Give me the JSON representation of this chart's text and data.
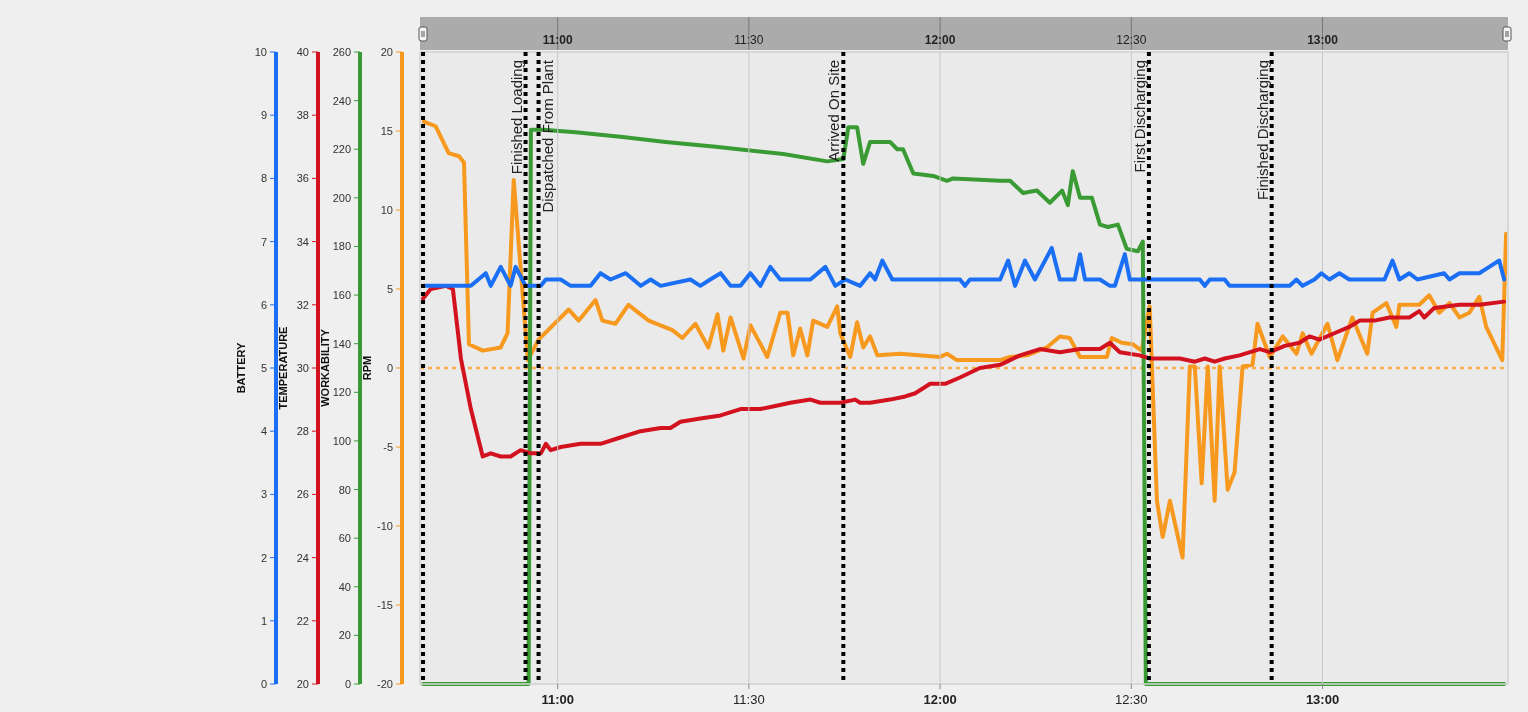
{
  "chart_data": [
    {
      "type": "line",
      "ylabel": "BATTERY",
      "xlim": [
        10.64,
        13.485
      ],
      "xticks": [
        {
          "value": 11,
          "label": "11:00"
        },
        {
          "value": 11.5,
          "label": "11:30"
        },
        {
          "value": 12,
          "label": "12:00"
        },
        {
          "value": 12.5,
          "label": "12:30"
        },
        {
          "value": 13,
          "label": "13:00"
        }
      ],
      "x2lim": [
        10.64,
        13.485
      ],
      "x2ticks": [
        {
          "value": 11,
          "label": "11:00"
        },
        {
          "value": 11.5,
          "label": "11:30"
        },
        {
          "value": 12,
          "label": "12:00"
        },
        {
          "value": 12.5,
          "label": "12:30"
        },
        {
          "value": 13,
          "label": "13:00"
        }
      ],
      "ylim": [
        0,
        10
      ],
      "yticks": [
        0,
        1,
        2,
        3,
        4,
        5,
        6,
        7,
        8,
        9,
        10
      ],
      "grid": "x",
      "series": [
        {
          "color": "#1a6ff5",
          "x": [
            10.648,
            10.773,
            10.812,
            10.825,
            10.851,
            10.877,
            10.89,
            10.916,
            10.956,
            10.969,
            11.008,
            11.034,
            11.086,
            11.112,
            11.138,
            11.178,
            11.217,
            11.243,
            11.269,
            11.347,
            11.373,
            11.399,
            11.426,
            11.452,
            11.478,
            11.504,
            11.53,
            11.556,
            11.582,
            11.661,
            11.7,
            11.726,
            11.752,
            11.791,
            11.817,
            11.83,
            11.849,
            11.875,
            12.052,
            12.065,
            12.078,
            12.157,
            12.178,
            12.196,
            12.222,
            12.248,
            12.292,
            12.313,
            12.352,
            12.366,
            12.379,
            12.418,
            12.444,
            12.457,
            12.483,
            12.496,
            12.679,
            12.692,
            12.705,
            12.744,
            12.757,
            12.914,
            12.932,
            12.948,
            12.979,
            12.997,
            13.018,
            13.044,
            13.07,
            13.162,
            13.183,
            13.201,
            13.227,
            13.248,
            13.318,
            13.332,
            13.358,
            13.41,
            13.436,
            13.462,
            13.475
          ],
          "values": [
            6.3,
            6.3,
            6.5,
            6.3,
            6.6,
            6.3,
            6.6,
            6.3,
            6.3,
            6.4,
            6.4,
            6.3,
            6.3,
            6.5,
            6.4,
            6.5,
            6.3,
            6.4,
            6.3,
            6.4,
            6.3,
            6.4,
            6.5,
            6.3,
            6.3,
            6.5,
            6.3,
            6.6,
            6.4,
            6.4,
            6.6,
            6.3,
            6.4,
            6.3,
            6.5,
            6.4,
            6.7,
            6.4,
            6.4,
            6.3,
            6.4,
            6.4,
            6.7,
            6.3,
            6.7,
            6.4,
            6.9,
            6.4,
            6.4,
            6.8,
            6.4,
            6.4,
            6.3,
            6.3,
            6.8,
            6.4,
            6.4,
            6.3,
            6.4,
            6.4,
            6.3,
            6.3,
            6.4,
            6.3,
            6.4,
            6.5,
            6.4,
            6.5,
            6.4,
            6.4,
            6.7,
            6.4,
            6.5,
            6.4,
            6.5,
            6.4,
            6.5,
            6.5,
            6.6,
            6.7,
            6.4
          ]
        }
      ],
      "ref_lines": [
        {
          "axis": "x",
          "value": 10.648,
          "label": null,
          "color": "#000000",
          "line_style": "dotted"
        },
        {
          "axis": "x",
          "value": 10.916,
          "label": "Finished Loading",
          "color": "#000000",
          "line_style": "dotted"
        },
        {
          "axis": "x",
          "value": 10.95,
          "label": "Dispatched From Plant",
          "color": "#000000",
          "line_style": "dotted"
        },
        {
          "axis": "x",
          "value": 11.747,
          "label": "Arrived On Site",
          "color": "#000000",
          "line_style": "dotted"
        },
        {
          "axis": "x",
          "value": 12.546,
          "label": "First Discharging",
          "color": "#000000",
          "line_style": "dotted"
        },
        {
          "axis": "x",
          "value": 12.867,
          "label": "Finished Discharging",
          "color": "#000000",
          "line_style": "dotted"
        }
      ]
    },
    {
      "type": "line",
      "ylabel": "TEMPERATURE",
      "xlim": [
        10.64,
        13.485
      ],
      "ylim": [
        20,
        40
      ],
      "yticks": [
        20,
        22,
        24,
        26,
        28,
        30,
        32,
        34,
        36,
        38,
        40
      ],
      "tick_labels": "y",
      "series": [
        {
          "color": "#d3121f",
          "x": [
            10.648,
            10.668,
            10.708,
            10.726,
            10.747,
            10.773,
            10.804,
            10.825,
            10.851,
            10.877,
            10.903,
            10.93,
            10.956,
            10.969,
            10.982,
            11.008,
            11.06,
            11.112,
            11.164,
            11.217,
            11.269,
            11.295,
            11.321,
            11.373,
            11.426,
            11.478,
            11.53,
            11.569,
            11.608,
            11.661,
            11.687,
            11.739,
            11.778,
            11.791,
            11.817,
            11.869,
            11.909,
            11.935,
            11.974,
            12.013,
            12.052,
            12.104,
            12.157,
            12.209,
            12.261,
            12.313,
            12.366,
            12.418,
            12.444,
            12.47,
            12.522,
            12.548,
            12.627,
            12.666,
            12.692,
            12.718,
            12.744,
            12.783,
            12.836,
            12.862,
            12.901,
            12.94,
            12.966,
            12.992,
            13.031,
            13.07,
            13.097,
            13.136,
            13.175,
            13.227,
            13.253,
            13.266,
            13.292,
            13.358,
            13.41,
            13.475
          ],
          "values": [
            32.2,
            32.5,
            32.6,
            32.5,
            30.3,
            28.7,
            27.2,
            27.3,
            27.2,
            27.2,
            27.4,
            27.3,
            27.3,
            27.6,
            27.4,
            27.5,
            27.6,
            27.6,
            27.8,
            28.0,
            28.1,
            28.1,
            28.3,
            28.4,
            28.5,
            28.7,
            28.7,
            28.8,
            28.9,
            29.0,
            28.9,
            28.9,
            29.0,
            28.9,
            28.9,
            29.0,
            29.1,
            29.2,
            29.5,
            29.5,
            29.7,
            30.0,
            30.1,
            30.4,
            30.6,
            30.5,
            30.6,
            30.6,
            30.8,
            30.5,
            30.4,
            30.3,
            30.3,
            30.2,
            30.3,
            30.2,
            30.3,
            30.4,
            30.6,
            30.5,
            30.7,
            30.8,
            31.0,
            30.9,
            31.1,
            31.3,
            31.5,
            31.5,
            31.6,
            31.6,
            31.8,
            31.6,
            31.9,
            32.0,
            32.0,
            32.1
          ]
        }
      ]
    },
    {
      "type": "line",
      "ylabel": "WORKABILITY",
      "xlim": [
        10.64,
        13.485
      ],
      "ylim": [
        0,
        260
      ],
      "yticks": [
        0,
        20,
        40,
        60,
        80,
        100,
        120,
        140,
        160,
        180,
        200,
        220,
        240,
        260
      ],
      "tick_labels": "y",
      "series": [
        {
          "color": "#3a9b35",
          "x": [
            10.648,
            10.924,
            10.93,
            10.961,
            11.047,
            11.17,
            11.282,
            11.413,
            11.59,
            11.705,
            11.747,
            11.76,
            11.783,
            11.799,
            11.817,
            11.869,
            11.888,
            11.903,
            11.93,
            11.982,
            12.018,
            12.034,
            12.157,
            12.183,
            12.217,
            12.253,
            12.287,
            12.319,
            12.334,
            12.347,
            12.366,
            12.397,
            12.418,
            12.439,
            12.465,
            12.488,
            12.517,
            12.53,
            12.538,
            13.475
          ],
          "values": [
            0,
            0,
            228,
            228,
            227,
            225,
            223,
            221,
            218,
            215,
            216,
            229,
            229,
            214,
            223,
            223,
            220,
            220,
            210,
            209,
            207,
            208,
            207,
            207,
            202,
            203,
            198,
            203,
            197,
            211,
            200,
            200,
            189,
            188,
            189,
            179,
            178,
            182,
            0,
            0
          ]
        }
      ]
    },
    {
      "type": "line",
      "ylabel": "RPM",
      "xlim": [
        10.64,
        13.485
      ],
      "ylim": [
        -20,
        20
      ],
      "yticks": [
        -20,
        -15,
        -10,
        -5,
        0,
        5,
        10,
        15,
        20
      ],
      "tick_labels": "y",
      "series": [
        {
          "color": "#f7991f",
          "x": [
            10.65,
            10.681,
            10.715,
            10.742,
            10.755,
            10.768,
            10.804,
            10.851,
            10.869,
            10.885,
            10.922,
            10.95,
            11.029,
            11.055,
            11.099,
            11.117,
            11.151,
            11.185,
            11.238,
            11.3,
            11.326,
            11.36,
            11.394,
            11.418,
            11.433,
            11.452,
            11.486,
            11.504,
            11.548,
            11.582,
            11.601,
            11.616,
            11.634,
            11.653,
            11.668,
            11.705,
            11.731,
            11.739,
            11.765,
            11.783,
            11.799,
            11.817,
            11.836,
            11.896,
            12.0,
            12.018,
            12.044,
            12.157,
            12.183,
            12.227,
            12.279,
            12.313,
            12.339,
            12.366,
            12.436,
            12.449,
            12.475,
            12.504,
            12.527,
            12.548,
            12.567,
            12.582,
            12.601,
            12.634,
            12.653,
            12.666,
            12.684,
            12.7,
            12.718,
            12.731,
            12.752,
            12.77,
            12.791,
            12.817,
            12.83,
            12.862,
            12.896,
            12.932,
            12.948,
            12.971,
            13.013,
            13.039,
            13.078,
            13.117,
            13.131,
            13.167,
            13.193,
            13.201,
            13.253,
            13.279,
            13.305,
            13.332,
            13.358,
            13.384,
            13.41,
            13.428,
            13.47,
            13.48
          ],
          "values": [
            15.6,
            15.3,
            13.6,
            13.4,
            13.0,
            1.5,
            1.1,
            1.3,
            2.2,
            11.9,
            0.5,
            1.8,
            3.7,
            3.0,
            4.3,
            3.0,
            2.8,
            4.0,
            3.0,
            2.4,
            1.9,
            2.8,
            1.3,
            3.4,
            1.1,
            3.2,
            0.6,
            2.7,
            0.7,
            3.5,
            3.5,
            0.8,
            2.5,
            0.8,
            3.0,
            2.6,
            3.9,
            2.2,
            0.7,
            2.9,
            1.3,
            2.0,
            0.8,
            0.9,
            0.7,
            0.9,
            0.5,
            0.5,
            0.7,
            0.8,
            1.3,
            2.0,
            1.9,
            0.7,
            0.7,
            1.9,
            1.6,
            1.5,
            1.1,
            3.9,
            -8.4,
            -10.7,
            -8.4,
            -12.0,
            0.1,
            0.1,
            -7.3,
            0.1,
            -8.4,
            0.1,
            -7.7,
            -6.6,
            0.1,
            0.2,
            2.8,
            0.7,
            2.0,
            0.9,
            2.2,
            0.9,
            2.8,
            0.5,
            3.2,
            0.9,
            3.5,
            4.1,
            2.6,
            4.0,
            4.0,
            4.6,
            3.5,
            4.1,
            3.2,
            3.5,
            4.5,
            2.6,
            0.5,
            8.5
          ]
        }
      ],
      "ref_lines": [
        {
          "axis": "y",
          "value": 0,
          "label": null,
          "color": "#f7b24f",
          "line_style": "dotted"
        }
      ]
    }
  ]
}
